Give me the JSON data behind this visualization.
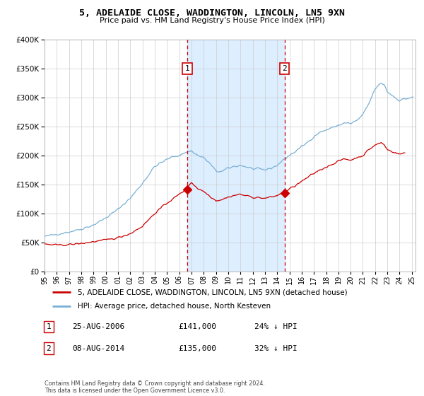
{
  "title": "5, ADELAIDE CLOSE, WADDINGTON, LINCOLN, LN5 9XN",
  "subtitle": "Price paid vs. HM Land Registry's House Price Index (HPI)",
  "legend_line1": "5, ADELAIDE CLOSE, WADDINGTON, LINCOLN, LN5 9XN (detached house)",
  "legend_line2": "HPI: Average price, detached house, North Kesteven",
  "footnote": "Contains HM Land Registry data © Crown copyright and database right 2024.\nThis data is licensed under the Open Government Licence v3.0.",
  "marker1_label": "1",
  "marker1_date": "25-AUG-2006",
  "marker1_price": "£141,000",
  "marker1_hpi": "24% ↓ HPI",
  "marker2_label": "2",
  "marker2_date": "08-AUG-2014",
  "marker2_price": "£135,000",
  "marker2_hpi": "32% ↓ HPI",
  "sale_color": "#cc0000",
  "hpi_color": "#7ab0d4",
  "background_fill": "#ddeeff",
  "ylim": [
    0,
    400000
  ],
  "yticks": [
    0,
    50000,
    100000,
    150000,
    200000,
    250000,
    300000,
    350000,
    400000
  ],
  "marker1_x": 2006.65,
  "marker2_x": 2014.6,
  "marker1_y": 141000,
  "marker2_y": 135000,
  "xlim_min": 1995,
  "xlim_max": 2025.3,
  "xtick_years": [
    1995,
    1996,
    1997,
    1998,
    1999,
    2000,
    2001,
    2002,
    2003,
    2004,
    2005,
    2006,
    2007,
    2008,
    2009,
    2010,
    2011,
    2012,
    2013,
    2014,
    2015,
    2016,
    2017,
    2018,
    2019,
    2020,
    2021,
    2022,
    2023,
    2024,
    2025
  ]
}
